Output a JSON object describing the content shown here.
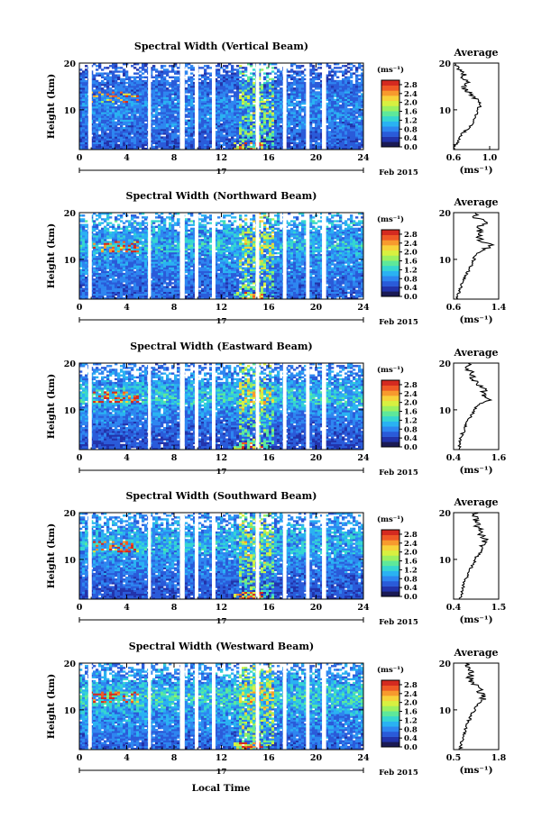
{
  "figure": {
    "xlabel": "Local Time",
    "colormap": [
      "#1a1a55",
      "#2233aa",
      "#2a5bd9",
      "#2e86f0",
      "#2ab2f2",
      "#36d6d0",
      "#5ee89a",
      "#9cf060",
      "#d8f040",
      "#f7d23a",
      "#f79a2e",
      "#ef5a26",
      "#d42a20"
    ],
    "background_color": "#ffffff"
  },
  "panels": [
    {
      "title": "Spectral Width (Vertical Beam)",
      "avg_title": "Average",
      "ylabel": "Height (km)",
      "xlabel_avg": "(ms⁻¹)",
      "cb_unit": "(ms⁻¹)",
      "date_label": "Feb 2015",
      "day_label": "17"
    },
    {
      "title": "Spectral Width (Northward Beam)",
      "avg_title": "Average",
      "ylabel": "Height (km)",
      "xlabel_avg": "(ms⁻¹)",
      "cb_unit": "(ms⁻¹)",
      "date_label": "Feb 2015",
      "day_label": "17"
    },
    {
      "title": "Spectral Width (Eastward Beam)",
      "avg_title": "Average",
      "ylabel": "Height (km)",
      "xlabel_avg": "(ms⁻¹)",
      "cb_unit": "(ms⁻¹)",
      "date_label": "Feb 2015",
      "day_label": "17"
    },
    {
      "title": "Spectral Width (Southward Beam)",
      "avg_title": "Average",
      "ylabel": "Height (km)",
      "xlabel_avg": "(ms⁻¹)",
      "cb_unit": "(ms⁻¹)",
      "date_label": "Feb 2015",
      "day_label": "17"
    },
    {
      "title": "Spectral Width (Westward Beam)",
      "avg_title": "Average",
      "ylabel": "Height (km)",
      "xlabel_avg": "(ms⁻¹)",
      "cb_unit": "(ms⁻¹)",
      "date_label": "Feb 2015",
      "day_label": "17"
    }
  ],
  "chart_data": [
    {
      "type": "heatmap",
      "title": "Spectral Width (Vertical Beam)",
      "ylabel": "Height (km)",
      "xlim": [
        0,
        24
      ],
      "ylim": [
        1.5,
        20
      ],
      "xticks": [
        0,
        4,
        8,
        12,
        16,
        20,
        24
      ],
      "yticks": [
        10,
        20
      ],
      "colorbar": {
        "unit": "(ms⁻¹)",
        "range": [
          0,
          3.0
        ],
        "ticks": [
          "2.8",
          "2.4",
          "2.0",
          "1.6",
          "1.2",
          "0.8",
          "0.4",
          "0.0"
        ],
        "tick_values": [
          2.8,
          2.4,
          2.0,
          1.6,
          1.2,
          0.8,
          0.4,
          0.0
        ]
      },
      "data_gaps_hours": [
        [
          0.75,
          1.05
        ],
        [
          5.8,
          6.05
        ],
        [
          8.5,
          8.9
        ],
        [
          9.75,
          10.05
        ],
        [
          11.2,
          11.5
        ],
        [
          14.9,
          15.2
        ],
        [
          17.2,
          17.5
        ],
        [
          19.15,
          19.45
        ],
        [
          20.5,
          20.85
        ]
      ],
      "date": "Feb 2015",
      "day": "17",
      "average_profile": {
        "title": "Average",
        "xlabel": "(ms⁻¹)",
        "xlim": [
          0.6,
          1.1
        ],
        "xticks": [
          0.6,
          1.0
        ],
        "xtick_labels": [
          "0.6",
          "1.0"
        ],
        "height_km": [
          2,
          3,
          4,
          5,
          6,
          7,
          8,
          9,
          10,
          11,
          12,
          13,
          14,
          15,
          16,
          17,
          18,
          19,
          20
        ],
        "values": [
          0.6,
          0.64,
          0.66,
          0.7,
          0.76,
          0.8,
          0.82,
          0.85,
          0.86,
          0.9,
          0.88,
          0.8,
          0.76,
          0.7,
          0.74,
          0.72,
          0.68,
          0.66,
          0.66
        ]
      }
    },
    {
      "type": "heatmap",
      "title": "Spectral Width (Northward Beam)",
      "ylabel": "Height (km)",
      "xlim": [
        0,
        24
      ],
      "ylim": [
        1.5,
        20
      ],
      "xticks": [
        0,
        4,
        8,
        12,
        16,
        20,
        24
      ],
      "yticks": [
        10,
        20
      ],
      "colorbar": {
        "unit": "(ms⁻¹)",
        "range": [
          0,
          3.0
        ],
        "ticks": [
          "2.8",
          "2.4",
          "2.0",
          "1.6",
          "1.2",
          "0.8",
          "0.4",
          "0.0"
        ],
        "tick_values": [
          2.8,
          2.4,
          2.0,
          1.6,
          1.2,
          0.8,
          0.4,
          0.0
        ]
      },
      "data_gaps_hours": [
        [
          0.75,
          1.05
        ],
        [
          5.8,
          6.05
        ],
        [
          8.5,
          8.9
        ],
        [
          9.75,
          10.05
        ],
        [
          11.2,
          11.5
        ],
        [
          14.9,
          15.2
        ],
        [
          17.2,
          17.5
        ],
        [
          19.15,
          19.45
        ],
        [
          20.5,
          20.85
        ]
      ],
      "date": "Feb 2015",
      "day": "17",
      "average_profile": {
        "title": "Average",
        "xlabel": "(ms⁻¹)",
        "xlim": [
          0.6,
          1.4
        ],
        "xticks": [
          0.6,
          1.4
        ],
        "xtick_labels": [
          "0.6",
          "1.4"
        ],
        "height_km": [
          2,
          3,
          4,
          5,
          6,
          7,
          8,
          9,
          10,
          11,
          12,
          13,
          14,
          15,
          16,
          17,
          18,
          19,
          20
        ],
        "values": [
          0.66,
          0.7,
          0.72,
          0.76,
          0.8,
          0.84,
          0.88,
          0.92,
          0.96,
          1.0,
          1.1,
          1.28,
          1.1,
          1.04,
          1.06,
          1.0,
          1.2,
          0.96,
          1.02
        ]
      }
    },
    {
      "type": "heatmap",
      "title": "Spectral Width (Eastward Beam)",
      "ylabel": "Height (km)",
      "xlim": [
        0,
        24
      ],
      "ylim": [
        1.5,
        20
      ],
      "xticks": [
        0,
        4,
        8,
        12,
        16,
        20,
        24
      ],
      "yticks": [
        10,
        20
      ],
      "colorbar": {
        "unit": "(ms⁻¹)",
        "range": [
          0,
          3.0
        ],
        "ticks": [
          "2.8",
          "2.4",
          "2.0",
          "1.6",
          "1.2",
          "0.8",
          "0.4",
          "0.0"
        ],
        "tick_values": [
          2.8,
          2.4,
          2.0,
          1.6,
          1.2,
          0.8,
          0.4,
          0.0
        ]
      },
      "data_gaps_hours": [
        [
          0.75,
          1.05
        ],
        [
          5.8,
          6.05
        ],
        [
          8.5,
          8.9
        ],
        [
          9.75,
          10.05
        ],
        [
          11.2,
          11.5
        ],
        [
          14.9,
          15.2
        ],
        [
          17.2,
          17.5
        ],
        [
          19.15,
          19.45
        ],
        [
          20.5,
          20.85
        ]
      ],
      "date": "Feb 2015",
      "day": "17",
      "average_profile": {
        "title": "Average",
        "xlabel": "(ms⁻¹)",
        "xlim": [
          0.4,
          1.6
        ],
        "xticks": [
          0.4,
          1.6
        ],
        "xtick_labels": [
          "0.4",
          "1.6"
        ],
        "height_km": [
          2,
          3,
          4,
          5,
          6,
          7,
          8,
          9,
          10,
          11,
          12,
          13,
          14,
          15,
          16,
          17,
          18,
          19,
          20
        ],
        "values": [
          0.56,
          0.58,
          0.6,
          0.64,
          0.7,
          0.74,
          0.8,
          0.88,
          0.96,
          1.04,
          1.3,
          1.2,
          1.22,
          1.1,
          0.98,
          0.92,
          0.86,
          0.8,
          0.78
        ]
      }
    },
    {
      "type": "heatmap",
      "title": "Spectral Width (Southward Beam)",
      "ylabel": "Height (km)",
      "xlim": [
        0,
        24
      ],
      "ylim": [
        1.5,
        20
      ],
      "xticks": [
        0,
        4,
        8,
        12,
        16,
        20,
        24
      ],
      "yticks": [
        10,
        20
      ],
      "colorbar": {
        "unit": "(ms⁻¹)",
        "range": [
          0,
          3.0
        ],
        "ticks": [
          "2.8",
          "2.4",
          "2.0",
          "1.6",
          "1.2",
          "0.8",
          "0.4",
          "0.0"
        ],
        "tick_values": [
          2.8,
          2.4,
          2.0,
          1.6,
          1.2,
          0.8,
          0.4,
          0.0
        ]
      },
      "data_gaps_hours": [
        [
          0.75,
          1.05
        ],
        [
          5.8,
          6.05
        ],
        [
          8.5,
          8.9
        ],
        [
          9.75,
          10.05
        ],
        [
          11.2,
          11.5
        ],
        [
          14.9,
          15.2
        ],
        [
          17.2,
          17.5
        ],
        [
          19.15,
          19.45
        ],
        [
          20.5,
          20.85
        ]
      ],
      "date": "Feb 2015",
      "day": "17",
      "average_profile": {
        "title": "Average",
        "xlabel": "(ms⁻¹)",
        "xlim": [
          0.4,
          1.5
        ],
        "xticks": [
          0.4,
          1.5
        ],
        "xtick_labels": [
          "0.4",
          "1.5"
        ],
        "height_km": [
          2,
          3,
          4,
          5,
          6,
          7,
          8,
          9,
          10,
          11,
          12,
          13,
          14,
          15,
          16,
          17,
          18,
          19,
          20
        ],
        "values": [
          0.56,
          0.6,
          0.62,
          0.66,
          0.72,
          0.76,
          0.82,
          0.88,
          0.92,
          1.0,
          1.14,
          1.1,
          1.18,
          1.1,
          1.06,
          1.0,
          0.96,
          0.9,
          0.94
        ]
      }
    },
    {
      "type": "heatmap",
      "title": "Spectral Width (Westward Beam)",
      "ylabel": "Height (km)",
      "xlim": [
        0,
        24
      ],
      "ylim": [
        1.5,
        20
      ],
      "xticks": [
        0,
        4,
        8,
        12,
        16,
        20,
        24
      ],
      "yticks": [
        10,
        20
      ],
      "colorbar": {
        "unit": "(ms⁻¹)",
        "range": [
          0,
          3.0
        ],
        "ticks": [
          "2.8",
          "2.4",
          "2.0",
          "1.6",
          "1.2",
          "0.8",
          "0.4",
          "0.0"
        ],
        "tick_values": [
          2.8,
          2.4,
          2.0,
          1.6,
          1.2,
          0.8,
          0.4,
          0.0
        ]
      },
      "data_gaps_hours": [
        [
          0.75,
          1.05
        ],
        [
          5.8,
          6.05
        ],
        [
          8.5,
          8.9
        ],
        [
          9.75,
          10.05
        ],
        [
          11.2,
          11.5
        ],
        [
          14.9,
          15.2
        ],
        [
          17.2,
          17.5
        ],
        [
          19.15,
          19.45
        ],
        [
          20.5,
          20.85
        ]
      ],
      "date": "Feb 2015",
      "day": "17",
      "average_profile": {
        "title": "Average",
        "xlabel": "(ms⁻¹)",
        "xlim": [
          0.5,
          1.8
        ],
        "xticks": [
          0.5,
          1.8
        ],
        "xtick_labels": [
          "0.5",
          "1.8"
        ],
        "height_km": [
          2,
          3,
          4,
          5,
          6,
          7,
          8,
          9,
          10,
          11,
          12,
          13,
          14,
          15,
          16,
          17,
          18,
          19,
          20
        ],
        "values": [
          0.7,
          0.74,
          0.76,
          0.8,
          0.86,
          0.9,
          0.96,
          1.02,
          1.1,
          1.2,
          1.3,
          1.38,
          1.26,
          1.16,
          1.04,
          0.96,
          1.0,
          0.9,
          0.96
        ]
      }
    }
  ]
}
